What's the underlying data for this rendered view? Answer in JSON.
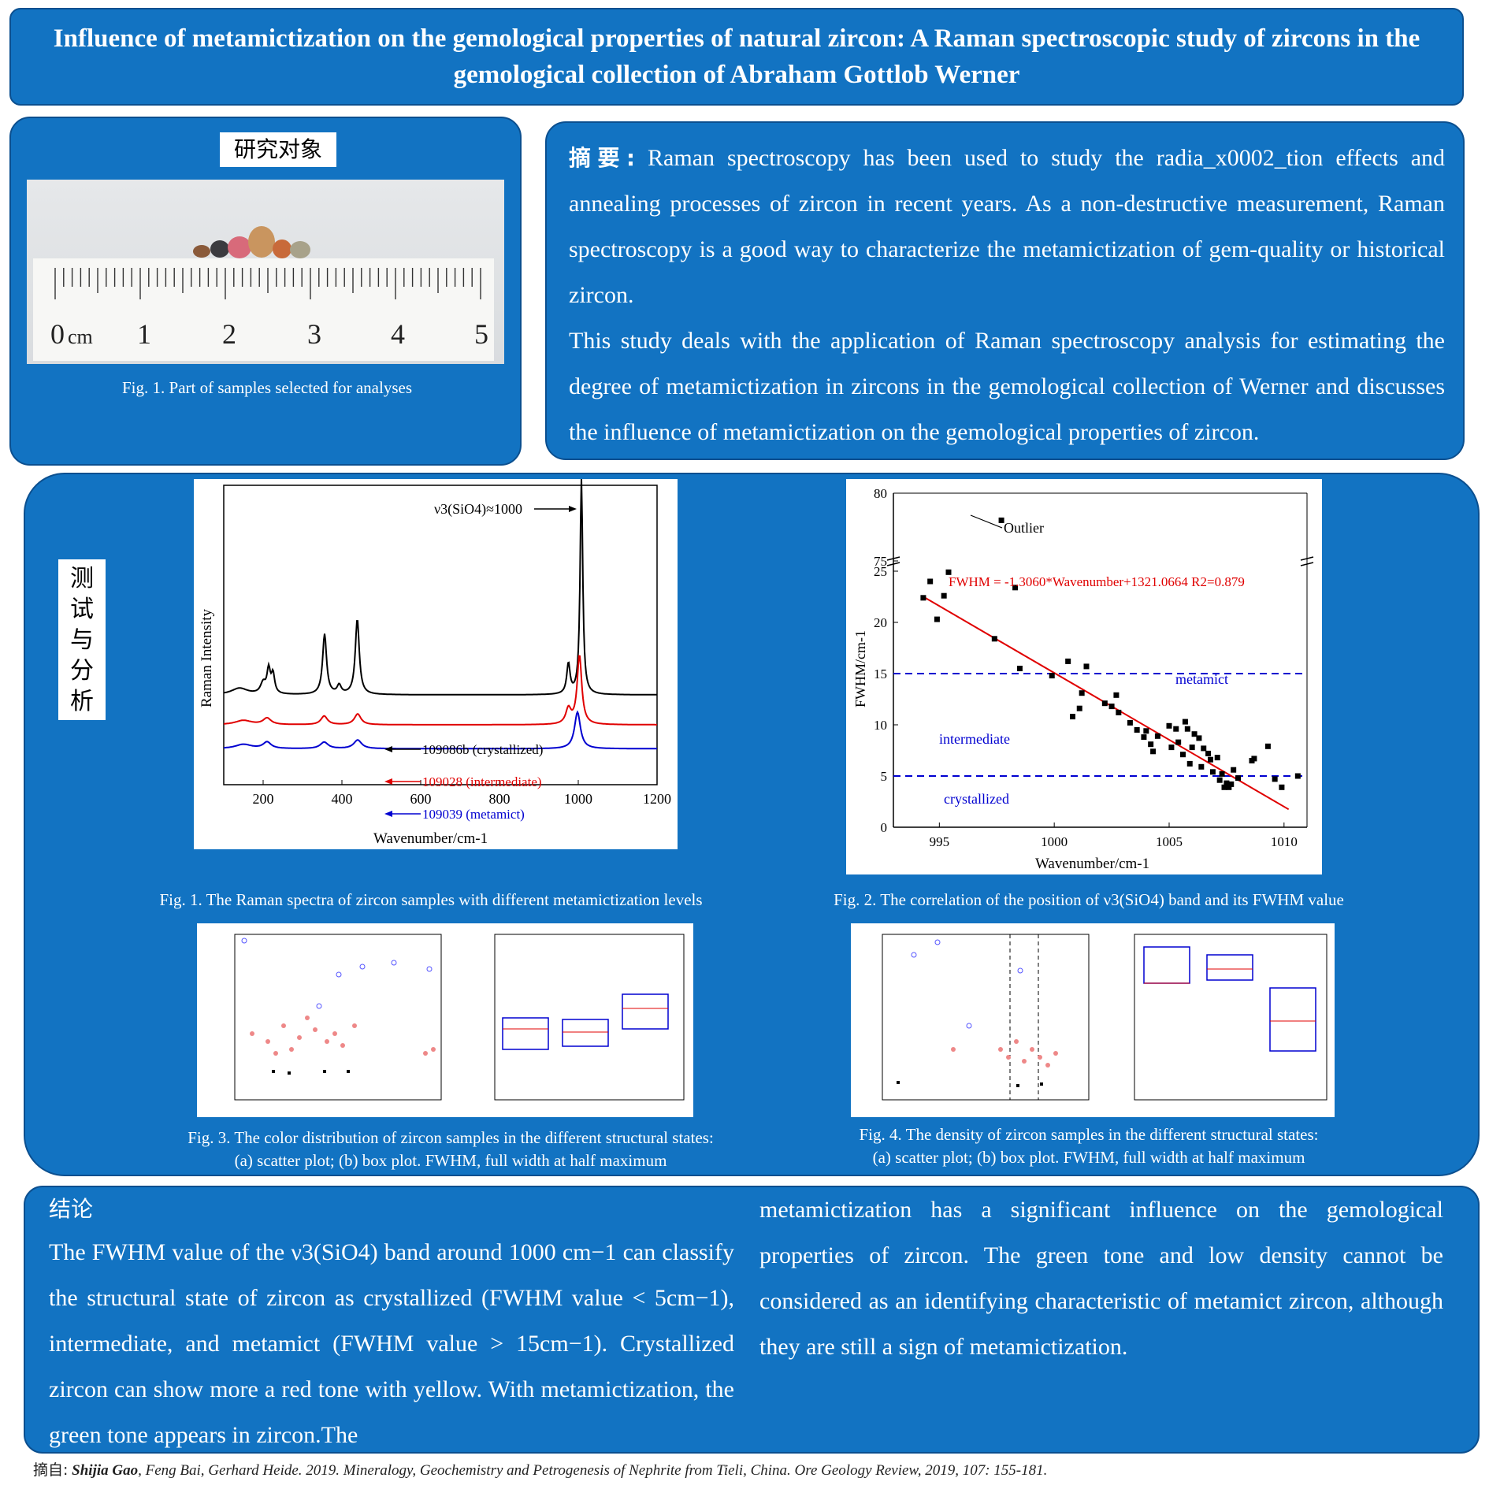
{
  "title": "Influence of metamictization on the gemological properties of natural zircon: A Raman spectroscopic study of zircons in the gemological collection of Abraham Gottlob Werner",
  "samples": {
    "heading": "研究对象",
    "ruler_labels": [
      "0",
      "1",
      "2",
      "3",
      "4",
      "5"
    ],
    "ruler_unit": "cm",
    "caption": "Fig. 1. Part of samples selected for analyses"
  },
  "abstract": {
    "heading": "摘要:",
    "p1": "Raman spectroscopy has been used to study the radia_x0002_tion effects and annealing processes of zircon in recent years. As a non-destructive measurement, Raman spectroscopy is a good way to characterize the metamictization of gem-quality or historical zircon.",
    "p2": "This study deals with the application of Raman spectroscopy analysis for estimating the degree of metamictization in zircons in the gemological collection of Werner and discusses the influence of metamictization on the gemological properties of zircon."
  },
  "analysis": {
    "heading_chars": [
      "测",
      "试",
      "与",
      "分",
      "析"
    ],
    "fig1_caption": "Fig. 1. The Raman spectra of zircon samples with different metamictization levels",
    "fig2_caption": "Fig. 2. The correlation of the position of ν3(SiO4) band and its FWHM value",
    "fig3_caption_line1": "Fig. 3. The color distribution of zircon samples in the different structural states:",
    "fig3_caption_line2": "(a) scatter plot; (b) box plot. FWHM, full width at half maximum",
    "fig4_caption_line1": "Fig. 4. The density of zircon samples in the different structural states:",
    "fig4_caption_line2": "(a) scatter plot; (b) box plot. FWHM, full width at half maximum"
  },
  "chart_data": [
    {
      "type": "line",
      "xlabel": "Wavenumber/cm-1",
      "ylabel": "Raman Intensity",
      "xlim": [
        100,
        1200
      ],
      "xticks": [
        200,
        400,
        600,
        800,
        1000,
        1200
      ],
      "peak_label": "ν3(SiO4)≈1000",
      "series": [
        {
          "name": "109086b (crystallized)",
          "color": "#000000",
          "offset": 0.7,
          "peaks": [
            [
              140,
              0.03,
              25
            ],
            [
              200,
              0.05,
              8
            ],
            [
              214,
              0.11,
              5
            ],
            [
              225,
              0.09,
              5
            ],
            [
              356,
              0.28,
              6
            ],
            [
              393,
              0.04,
              6
            ],
            [
              439,
              0.35,
              6
            ],
            [
              975,
              0.14,
              5
            ],
            [
              1008,
              1.0,
              4
            ]
          ]
        },
        {
          "name": "109028 (intermediate)",
          "color": "#e00000",
          "offset": 0.8,
          "peaks": [
            [
              150,
              0.02,
              25
            ],
            [
              210,
              0.03,
              12
            ],
            [
              355,
              0.04,
              10
            ],
            [
              440,
              0.05,
              10
            ],
            [
              975,
              0.07,
              8
            ],
            [
              1003,
              0.32,
              7
            ]
          ]
        },
        {
          "name": "109039 (metamict)",
          "color": "#0000d0",
          "offset": 0.88,
          "peaks": [
            [
              150,
              0.02,
              25
            ],
            [
              210,
              0.03,
              12
            ],
            [
              355,
              0.03,
              12
            ],
            [
              440,
              0.04,
              12
            ],
            [
              998,
              0.17,
              9
            ]
          ]
        }
      ]
    },
    {
      "type": "scatter",
      "xlabel": "Wavenumber/cm-1",
      "ylabel": "FWHM/cm-1",
      "xlim": [
        993,
        1011
      ],
      "xticks": [
        995,
        1000,
        1005,
        1010
      ],
      "yticks": [
        0,
        5,
        10,
        15,
        20,
        25,
        75,
        80
      ],
      "equation_label": "FWHM = -1.3060*Wavenumber+1321.0664  R2=0.879",
      "outlier": {
        "x": 997.7,
        "y": 78,
        "label": "Outlier"
      },
      "zones": [
        "metamict",
        "intermediate",
        "crystallized"
      ],
      "thresholds": [
        5,
        15
      ],
      "points": [
        [
          994.3,
          22.4
        ],
        [
          994.6,
          24.0
        ],
        [
          994.7,
          25.7
        ],
        [
          994.9,
          20.3
        ],
        [
          995.2,
          22.6
        ],
        [
          995.4,
          24.9
        ],
        [
          997.4,
          18.4
        ],
        [
          998.3,
          23.4
        ],
        [
          998.5,
          15.5
        ],
        [
          999.9,
          14.8
        ],
        [
          1000.6,
          16.2
        ],
        [
          1000.8,
          10.8
        ],
        [
          1001.1,
          11.6
        ],
        [
          1001.2,
          13.1
        ],
        [
          1001.4,
          15.7
        ],
        [
          1002.2,
          12.1
        ],
        [
          1002.5,
          11.8
        ],
        [
          1002.7,
          12.9
        ],
        [
          1002.8,
          11.2
        ],
        [
          1003.3,
          10.2
        ],
        [
          1003.6,
          9.5
        ],
        [
          1003.9,
          8.8
        ],
        [
          1004.0,
          9.4
        ],
        [
          1004.2,
          8.1
        ],
        [
          1004.3,
          7.4
        ],
        [
          1004.5,
          8.9
        ],
        [
          1005.0,
          9.9
        ],
        [
          1005.1,
          7.8
        ],
        [
          1005.3,
          9.6
        ],
        [
          1005.4,
          8.3
        ],
        [
          1005.6,
          7.1
        ],
        [
          1005.7,
          10.3
        ],
        [
          1005.8,
          9.6
        ],
        [
          1005.9,
          6.2
        ],
        [
          1006.0,
          7.8
        ],
        [
          1006.1,
          9.1
        ],
        [
          1006.3,
          8.7
        ],
        [
          1006.4,
          5.9
        ],
        [
          1006.5,
          7.7
        ],
        [
          1006.7,
          7.2
        ],
        [
          1006.8,
          6.6
        ],
        [
          1006.9,
          5.4
        ],
        [
          1007.1,
          6.8
        ],
        [
          1007.2,
          4.6
        ],
        [
          1007.3,
          5.2
        ],
        [
          1007.4,
          3.9
        ],
        [
          1007.5,
          4.3
        ],
        [
          1007.6,
          3.9
        ],
        [
          1007.7,
          4.2
        ],
        [
          1007.8,
          5.6
        ],
        [
          1008.0,
          4.8
        ],
        [
          1008.6,
          6.5
        ],
        [
          1008.7,
          6.7
        ],
        [
          1009.3,
          7.9
        ],
        [
          1009.6,
          4.7
        ],
        [
          1009.9,
          3.9
        ],
        [
          1010.6,
          5.0
        ]
      ]
    }
  ],
  "conclusion": {
    "heading": "结论",
    "left_text": "The FWHM value of the ν3(SiO4) band around 1000 cm−1 can classify the structural state of zircon as crystallized (FWHM value < 5cm−1), intermediate, and metamict (FWHM value > 15cm−1). Crystallized zircon can show more a red tone with yellow. With metamictization, the green tone appears in zircon.The",
    "right_text": "metamictization has a significant influence on the gemological properties of zircon. The green tone and low density cannot be considered as an identifying characteristic of metamict zircon, although they are still a sign of metamictization."
  },
  "reference": {
    "prefix": "摘自:",
    "authors_bold": "Shijia Gao",
    "rest": ", Feng Bai, Gerhard Heide. 2019. Mineralogy, Geochemistry and Petrogenesis of Nephrite from Tieli, China. Ore Geology Review, 2019, 107: 155-181."
  },
  "colors": {
    "panel": "#1273c2",
    "crystallized": "#000000",
    "intermediate": "#e00000",
    "metamict": "#0000d0",
    "fit_line": "#e00000"
  }
}
